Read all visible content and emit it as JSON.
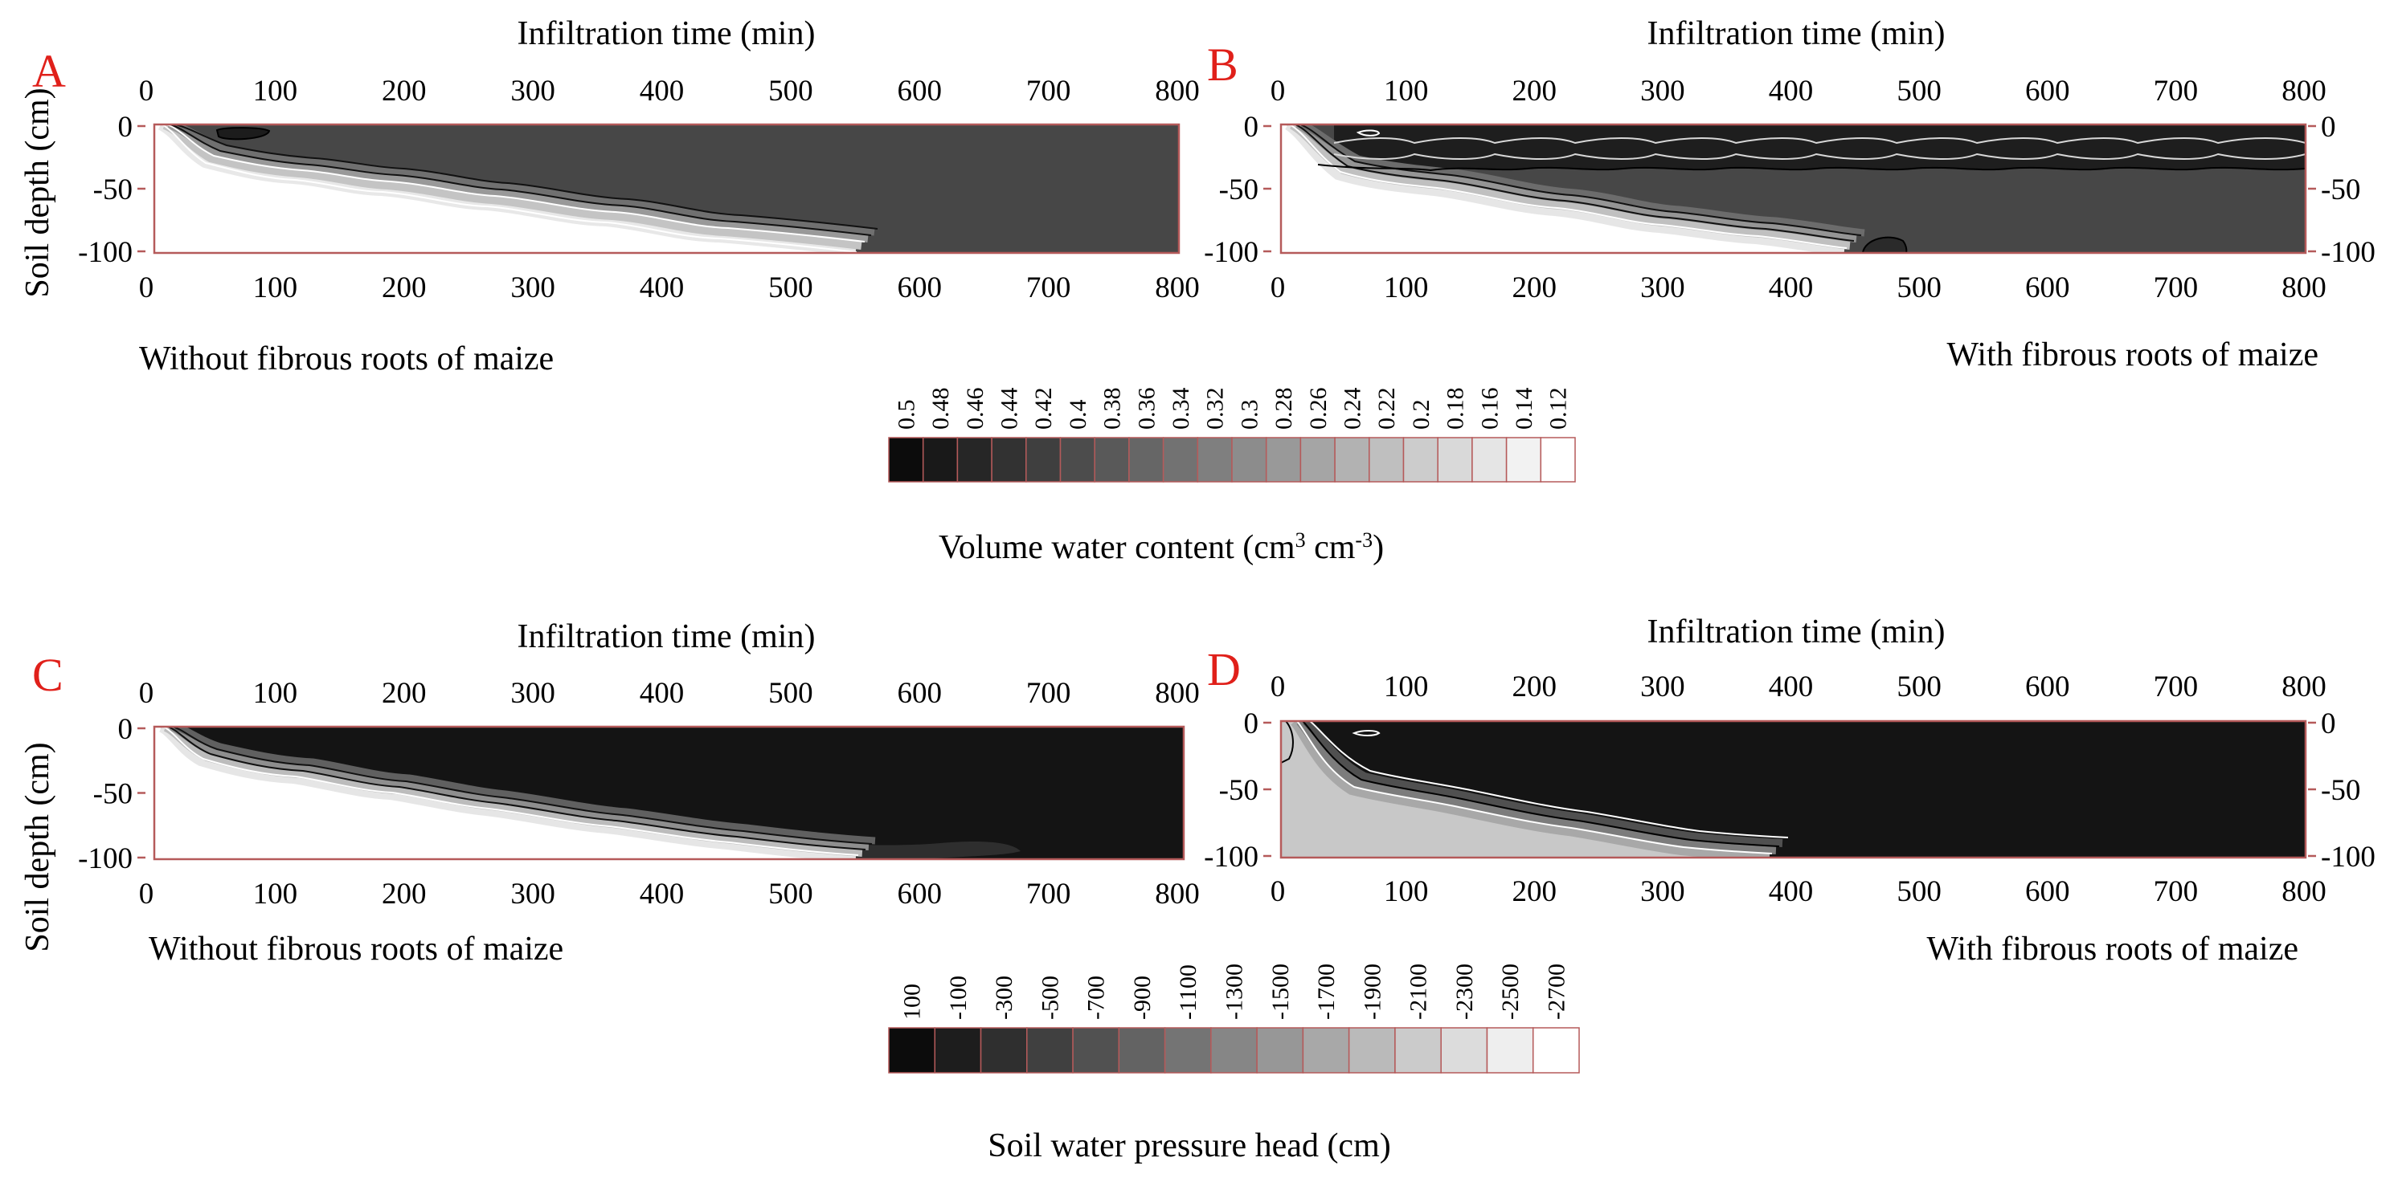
{
  "colors": {
    "panel_label": "#e0201a",
    "axis_frame": "#b55a5a",
    "contour_dark": "#111111",
    "contour_light": "#ffffff"
  },
  "chart_data": [
    {
      "type": "heatmap",
      "panel_label": "A",
      "title": "Infiltration time (min)",
      "ylabel": "Soil depth (cm)",
      "caption": "Without fibrous roots of maize",
      "xlim": [
        0,
        800
      ],
      "ylim": [
        -100,
        0
      ],
      "x_ticks": [
        "0",
        "100",
        "200",
        "300",
        "400",
        "500",
        "600",
        "700",
        "800"
      ],
      "y_ticks": [
        "0",
        "-50",
        "-100"
      ],
      "variable": "Volume water content",
      "wetting_front": {
        "time_min": [
          0,
          40,
          100,
          200,
          300,
          400,
          500,
          600
        ],
        "depth_cm": [
          0,
          -25,
          -33,
          -45,
          -57,
          -70,
          -84,
          -100
        ]
      },
      "wet_zone_value": 0.4
    },
    {
      "type": "heatmap",
      "panel_label": "B",
      "title": "Infiltration time (min)",
      "caption": "With fibrous roots of maize",
      "xlim": [
        0,
        800
      ],
      "ylim": [
        -100,
        0
      ],
      "x_ticks": [
        "0",
        "100",
        "200",
        "300",
        "400",
        "500",
        "600",
        "700",
        "800"
      ],
      "y_ticks": [
        "0",
        "-50",
        "-100"
      ],
      "y_ticks_right": [
        "0",
        "-50",
        "-100"
      ],
      "variable": "Volume water content",
      "wetting_front": {
        "time_min": [
          0,
          40,
          100,
          200,
          300,
          400,
          450
        ],
        "depth_cm": [
          0,
          -35,
          -45,
          -60,
          -75,
          -92,
          -100
        ]
      },
      "wet_zone_value": 0.4
    },
    {
      "type": "heatmap",
      "panel_label": "C",
      "title": "Infiltration time (min)",
      "ylabel": "Soil depth (cm)",
      "caption": "Without fibrous roots of maize",
      "xlim": [
        0,
        800
      ],
      "ylim": [
        -100,
        0
      ],
      "x_ticks": [
        "0",
        "100",
        "200",
        "300",
        "400",
        "500",
        "600",
        "700",
        "800"
      ],
      "y_ticks": [
        "0",
        "-50",
        "-100"
      ],
      "variable": "Soil water pressure head",
      "wetting_front": {
        "time_min": [
          0,
          40,
          100,
          200,
          300,
          400,
          500,
          640
        ],
        "depth_cm": [
          0,
          -22,
          -30,
          -42,
          -55,
          -68,
          -80,
          -100
        ]
      },
      "wet_zone_value": 100
    },
    {
      "type": "heatmap",
      "panel_label": "D",
      "title": "Infiltration time (min)",
      "caption": "With fibrous roots of maize",
      "xlim": [
        0,
        800
      ],
      "ylim": [
        -100,
        0
      ],
      "x_ticks": [
        "0",
        "100",
        "200",
        "300",
        "400",
        "500",
        "600",
        "700",
        "800"
      ],
      "y_ticks": [
        "0",
        "-50",
        "-100"
      ],
      "y_ticks_right": [
        "0",
        "-50",
        "-100"
      ],
      "variable": "Soil water pressure head",
      "wetting_front": {
        "time_min": [
          0,
          40,
          100,
          200,
          300,
          400,
          450
        ],
        "depth_cm": [
          0,
          -30,
          -45,
          -60,
          -75,
          -92,
          -100
        ]
      },
      "wet_zone_value": 100
    }
  ],
  "colorbars": [
    {
      "label": "Volume water content (cm 3 cm-3)",
      "label_main": "Volume water content (cm",
      "label_sup1": "3",
      "label_mid": " cm",
      "label_sup2": "-3",
      "label_end": ")",
      "ticks": [
        "0.5",
        "0.48",
        "0.46",
        "0.44",
        "0.42",
        "0.4",
        "0.38",
        "0.36",
        "0.34",
        "0.32",
        "0.3",
        "0.28",
        "0.26",
        "0.24",
        "0.22",
        "0.2",
        "0.18",
        "0.16",
        "0.14",
        "0.12"
      ]
    },
    {
      "label": "Soil water pressure head (cm)",
      "ticks": [
        "100",
        "-100",
        "-300",
        "-500",
        "-700",
        "-900",
        "-1100",
        "-1300",
        "-1500",
        "-1700",
        "-1900",
        "-2100",
        "-2300",
        "-2500",
        "-2700"
      ]
    }
  ]
}
